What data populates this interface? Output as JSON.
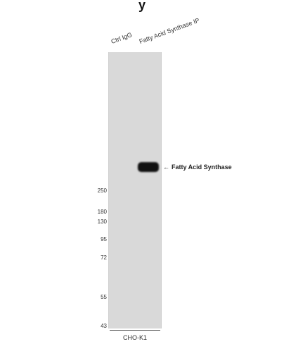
{
  "top_title": "y",
  "lanes": [
    {
      "label": "Ctrl IgG"
    },
    {
      "label": "Fatty Acid Synthase IP"
    }
  ],
  "band": {
    "label": "Fatty Acid Synthase",
    "arrow": "←"
  },
  "markers": [
    "250",
    "180",
    "130",
    "95",
    "72",
    "55",
    "43"
  ],
  "sample": "CHO-K1",
  "colors": {
    "membrane": "#d9d9d9",
    "band": "#111111"
  }
}
